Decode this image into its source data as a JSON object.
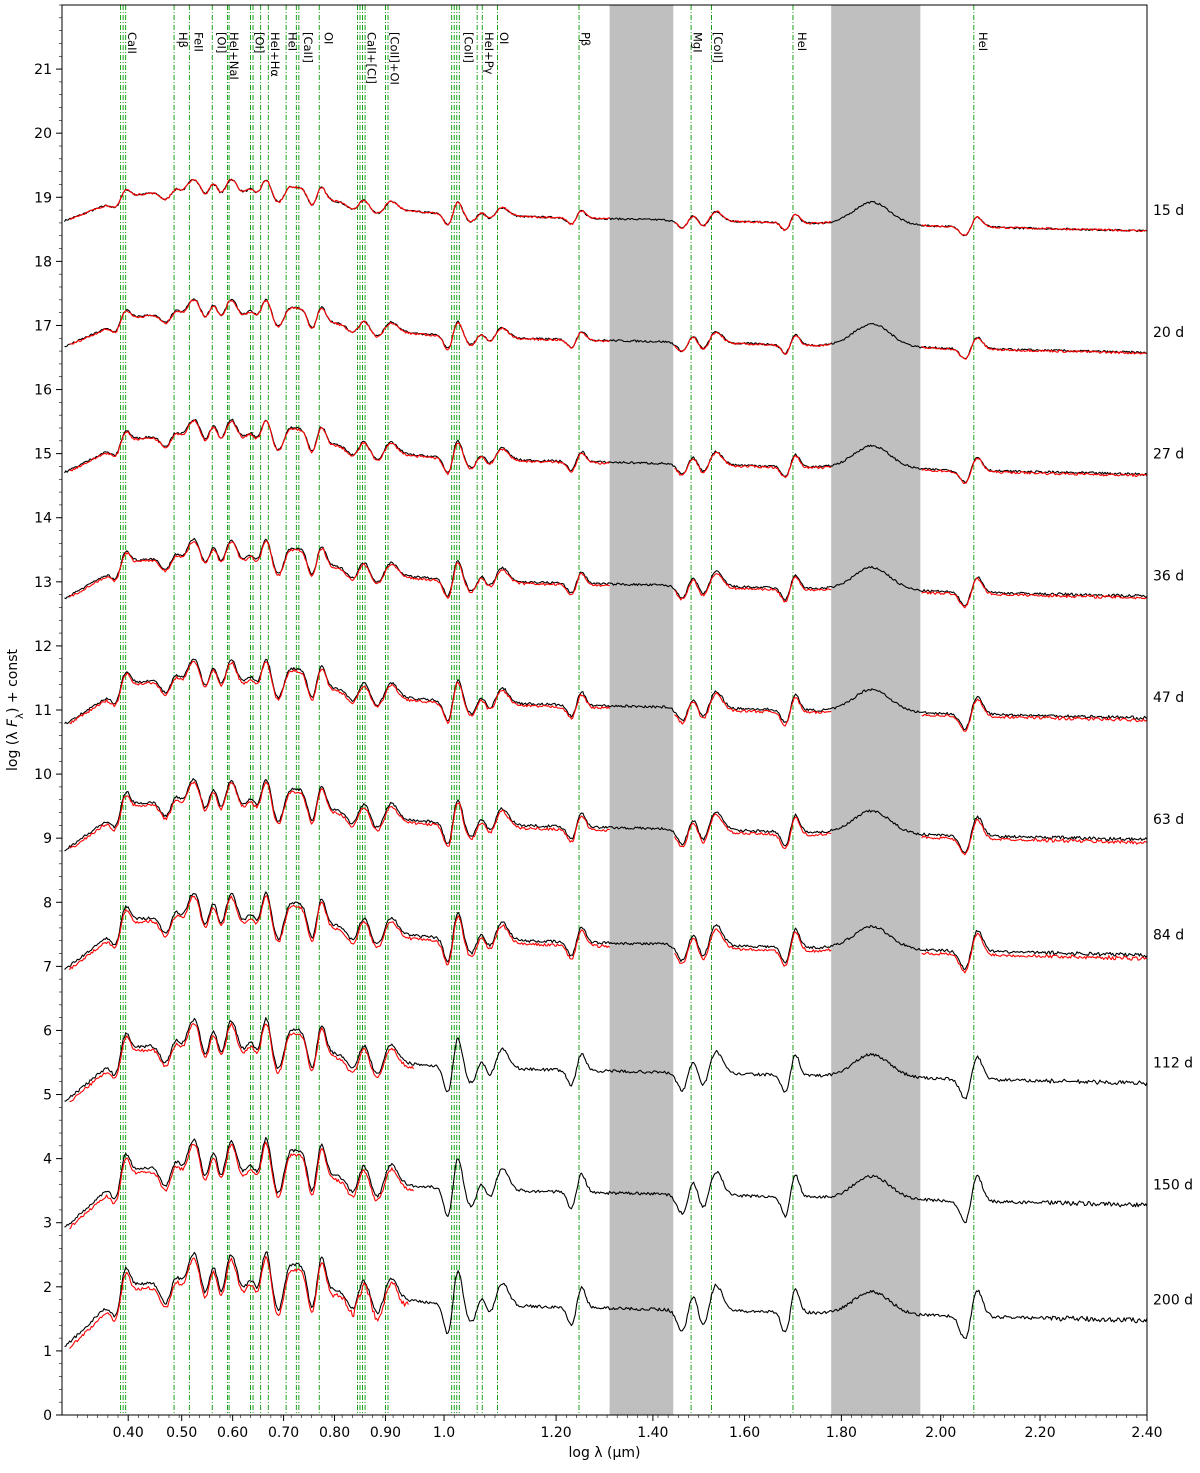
{
  "chart_data": {
    "type": "line",
    "xlabel": "log λ (µm)",
    "ylabel": "log (λ F_λ) + const",
    "ylabel_parts": {
      "pre": "log (λ ",
      "F": "F",
      "sub": "λ",
      "post": ") + const"
    },
    "xlim": [
      0.27,
      2.4
    ],
    "ylim": [
      0,
      22
    ],
    "xticks": [
      0.4,
      0.5,
      0.6,
      0.7,
      0.8,
      0.9,
      1.0,
      1.2,
      1.4,
      1.6,
      1.8,
      2.0,
      2.2,
      2.4
    ],
    "xtick_labels": [
      "0.40",
      "0.50",
      "0.60",
      "0.70",
      "0.80",
      "0.90",
      "1.0",
      "1.20",
      "1.40",
      "1.60",
      "1.80",
      "2.00",
      "2.20",
      "2.40"
    ],
    "xtick_positions": [
      0.4,
      0.505,
      0.605,
      0.705,
      0.805,
      0.905,
      1.02,
      1.24,
      1.43,
      1.61,
      1.8,
      1.995,
      2.19,
      2.4
    ],
    "yticks": [
      0,
      1,
      2,
      3,
      4,
      5,
      6,
      7,
      8,
      9,
      10,
      11,
      12,
      13,
      14,
      15,
      16,
      17,
      18,
      19,
      20,
      21
    ],
    "shaded_bands": [
      {
        "x0": 1.345,
        "x1": 1.47,
        "color": "#bfbfbf"
      },
      {
        "x0": 1.78,
        "x1": 1.955,
        "color": "#bfbfbf"
      }
    ],
    "line_markers": [
      {
        "label": "CaII",
        "x": [
          0.385,
          0.39,
          0.395
        ],
        "label_x": 0.4
      },
      {
        "label": "Hβ",
        "x": [
          0.49
        ],
        "label_x": 0.5
      },
      {
        "label": "FeII",
        "x": [
          0.52
        ],
        "label_x": 0.53
      },
      {
        "label": "[OI]",
        "x": [
          0.565
        ],
        "label_x": 0.575
      },
      {
        "label": "HeI+NaI",
        "x": [
          0.595,
          0.598
        ],
        "label_x": 0.6
      },
      {
        "label": "[OI]",
        "x": [
          0.64,
          0.645
        ],
        "label_x": 0.65
      },
      {
        "label": "HeI+Hα",
        "x": [
          0.66,
          0.675
        ],
        "label_x": 0.68
      },
      {
        "label": "HeI",
        "x": [
          0.71
        ],
        "label_x": 0.715
      },
      {
        "label": "[CaII]",
        "x": [
          0.73,
          0.735
        ],
        "label_x": 0.745
      },
      {
        "label": "OI",
        "x": [
          0.775
        ],
        "label_x": 0.785
      },
      {
        "label": "CaII+[CI]",
        "x": [
          0.85,
          0.855,
          0.86,
          0.865
        ],
        "label_x": 0.87
      },
      {
        "label": "[CoII]+OI",
        "x": [
          0.905,
          0.91
        ],
        "label_x": 0.915
      },
      {
        "label": "[CoII]",
        "x": [
          1.035,
          1.04,
          1.045,
          1.05
        ],
        "label_x": 1.06
      },
      {
        "label": "HeI+Pγ",
        "x": [
          1.085,
          1.095
        ],
        "label_x": 1.1
      },
      {
        "label": "OI",
        "x": [
          1.125
        ],
        "label_x": 1.13
      },
      {
        "label": "Pβ",
        "x": [
          1.285
        ],
        "label_x": 1.29
      },
      {
        "label": "MgI",
        "x": [
          1.505
        ],
        "label_x": 1.51
      },
      {
        "label": "[CoII]",
        "x": [
          1.545
        ],
        "label_x": 1.55
      },
      {
        "label": "HeI",
        "x": [
          1.705
        ],
        "label_x": 1.715
      },
      {
        "label": "HeI",
        "x": [
          2.06
        ],
        "label_x": 2.07
      }
    ],
    "epochs": [
      {
        "label": "15 d",
        "offset": 18.8
      },
      {
        "label": "20 d",
        "offset": 16.9
      },
      {
        "label": "27 d",
        "offset": 15.0
      },
      {
        "label": "36 d",
        "offset": 13.1
      },
      {
        "label": "47 d",
        "offset": 11.2
      },
      {
        "label": "63 d",
        "offset": 9.3
      },
      {
        "label": "84 d",
        "offset": 7.5
      },
      {
        "label": "112 d",
        "offset": 5.5
      },
      {
        "label": "150 d",
        "offset": 3.6
      },
      {
        "label": "200 d",
        "offset": 1.8
      }
    ],
    "series": [
      {
        "color": "#000000"
      },
      {
        "color": "#ff0000"
      }
    ]
  },
  "colors": {
    "marker": "#009900",
    "band": "#bfbfbf",
    "observed": "#000000",
    "model": "#ff0000"
  }
}
